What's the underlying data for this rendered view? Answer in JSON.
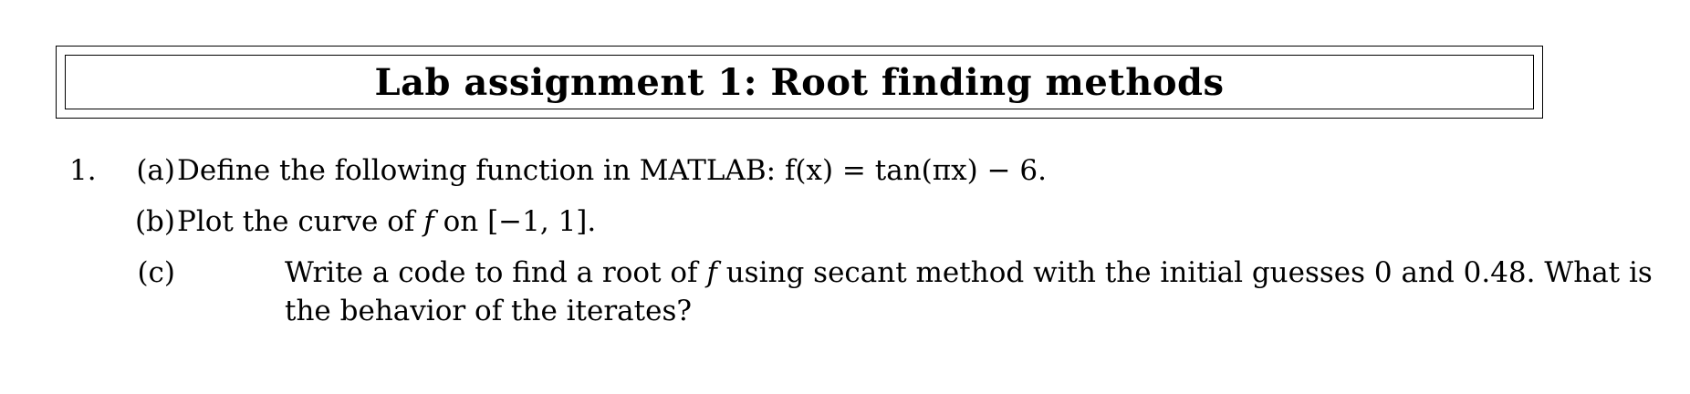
{
  "title": "Lab assignment 1: Root finding methods",
  "problem": {
    "number": "1.",
    "parts": [
      {
        "label": "(a)",
        "text": "Define the following function in MATLAB: ",
        "math": "f(x) = tan(πx) − 6",
        "tail": "."
      },
      {
        "label": "(b)",
        "text": "Plot the curve of ",
        "math_var": "f",
        "text2": " on ",
        "math_interval": "[−1, 1]",
        "tail": "."
      },
      {
        "label": "(c)",
        "text": "Write a code to find a root of ",
        "math_var": "f",
        "text2": " using secant method with the initial guesses 0 and 0.48. What is the behavior of the iterates?"
      }
    ]
  }
}
